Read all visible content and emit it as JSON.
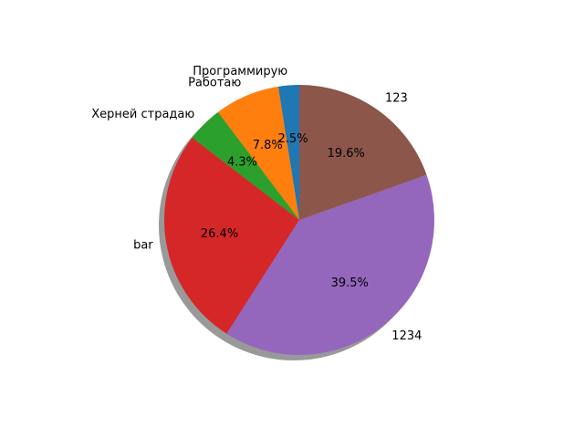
{
  "chart_data": {
    "type": "pie",
    "labels": [
      "Программирую",
      "Работаю",
      "Херней страдаю",
      "bar",
      "1234",
      "123"
    ],
    "values": [
      2.5,
      7.8,
      4.3,
      26.4,
      39.5,
      19.6
    ],
    "percent_labels": [
      "2.5%",
      "7.8%",
      "4.3%",
      "26.4%",
      "39.5%",
      "19.6%"
    ],
    "colors": [
      "#1f77b4",
      "#ff7f0e",
      "#2ca02c",
      "#d62728",
      "#9467bd",
      "#8c564b"
    ],
    "start_angle_deg": 90,
    "direction": "counterclockwise",
    "shadow": true
  }
}
